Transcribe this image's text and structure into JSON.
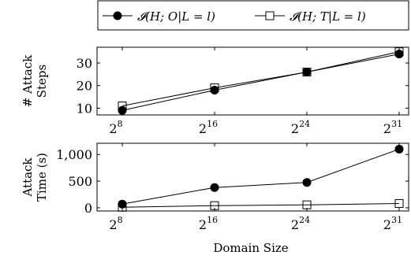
{
  "legend": {
    "items": [
      {
        "label": "𝓘(H; O|L = l)",
        "marker": "filled-circle"
      },
      {
        "label": "𝓘(H; T|L = l)",
        "marker": "open-square"
      }
    ]
  },
  "chart_data": [
    {
      "type": "line",
      "categories": [
        "2^8",
        "2^16",
        "2^24",
        "2^31"
      ],
      "category_labels": [
        {
          "base": "2",
          "exp": "8"
        },
        {
          "base": "2",
          "exp": "16"
        },
        {
          "base": "2",
          "exp": "24"
        },
        {
          "base": "2",
          "exp": "31"
        }
      ],
      "ylabel_lines": [
        "# Attack",
        "Steps"
      ],
      "ylim": [
        7,
        37
      ],
      "yticks": [
        10,
        20,
        30
      ],
      "ytick_labels": [
        "10",
        "20",
        "30"
      ],
      "series": [
        {
          "name": "𝓘(H; O|L = l)",
          "marker": "filled-circle",
          "values": [
            9,
            18,
            26,
            34
          ]
        },
        {
          "name": "𝓘(H; T|L = l)",
          "marker": "open-square",
          "values": [
            11,
            19,
            26,
            35
          ]
        }
      ]
    },
    {
      "type": "line",
      "categories": [
        "2^8",
        "2^16",
        "2^24",
        "2^31"
      ],
      "category_labels": [
        {
          "base": "2",
          "exp": "8"
        },
        {
          "base": "2",
          "exp": "16"
        },
        {
          "base": "2",
          "exp": "24"
        },
        {
          "base": "2",
          "exp": "31"
        }
      ],
      "xlabel": "Domain Size",
      "ylabel_lines": [
        "Attack",
        "Time (s)"
      ],
      "ylim": [
        -60,
        1210
      ],
      "yticks": [
        0,
        500,
        1000
      ],
      "ytick_labels": [
        "0",
        "500",
        "1,000"
      ],
      "series": [
        {
          "name": "𝓘(H; O|L = l)",
          "marker": "filled-circle",
          "values": [
            70,
            380,
            475,
            1100
          ]
        },
        {
          "name": "𝓘(H; T|L = l)",
          "marker": "open-square",
          "values": [
            10,
            40,
            55,
            80
          ]
        }
      ]
    }
  ]
}
